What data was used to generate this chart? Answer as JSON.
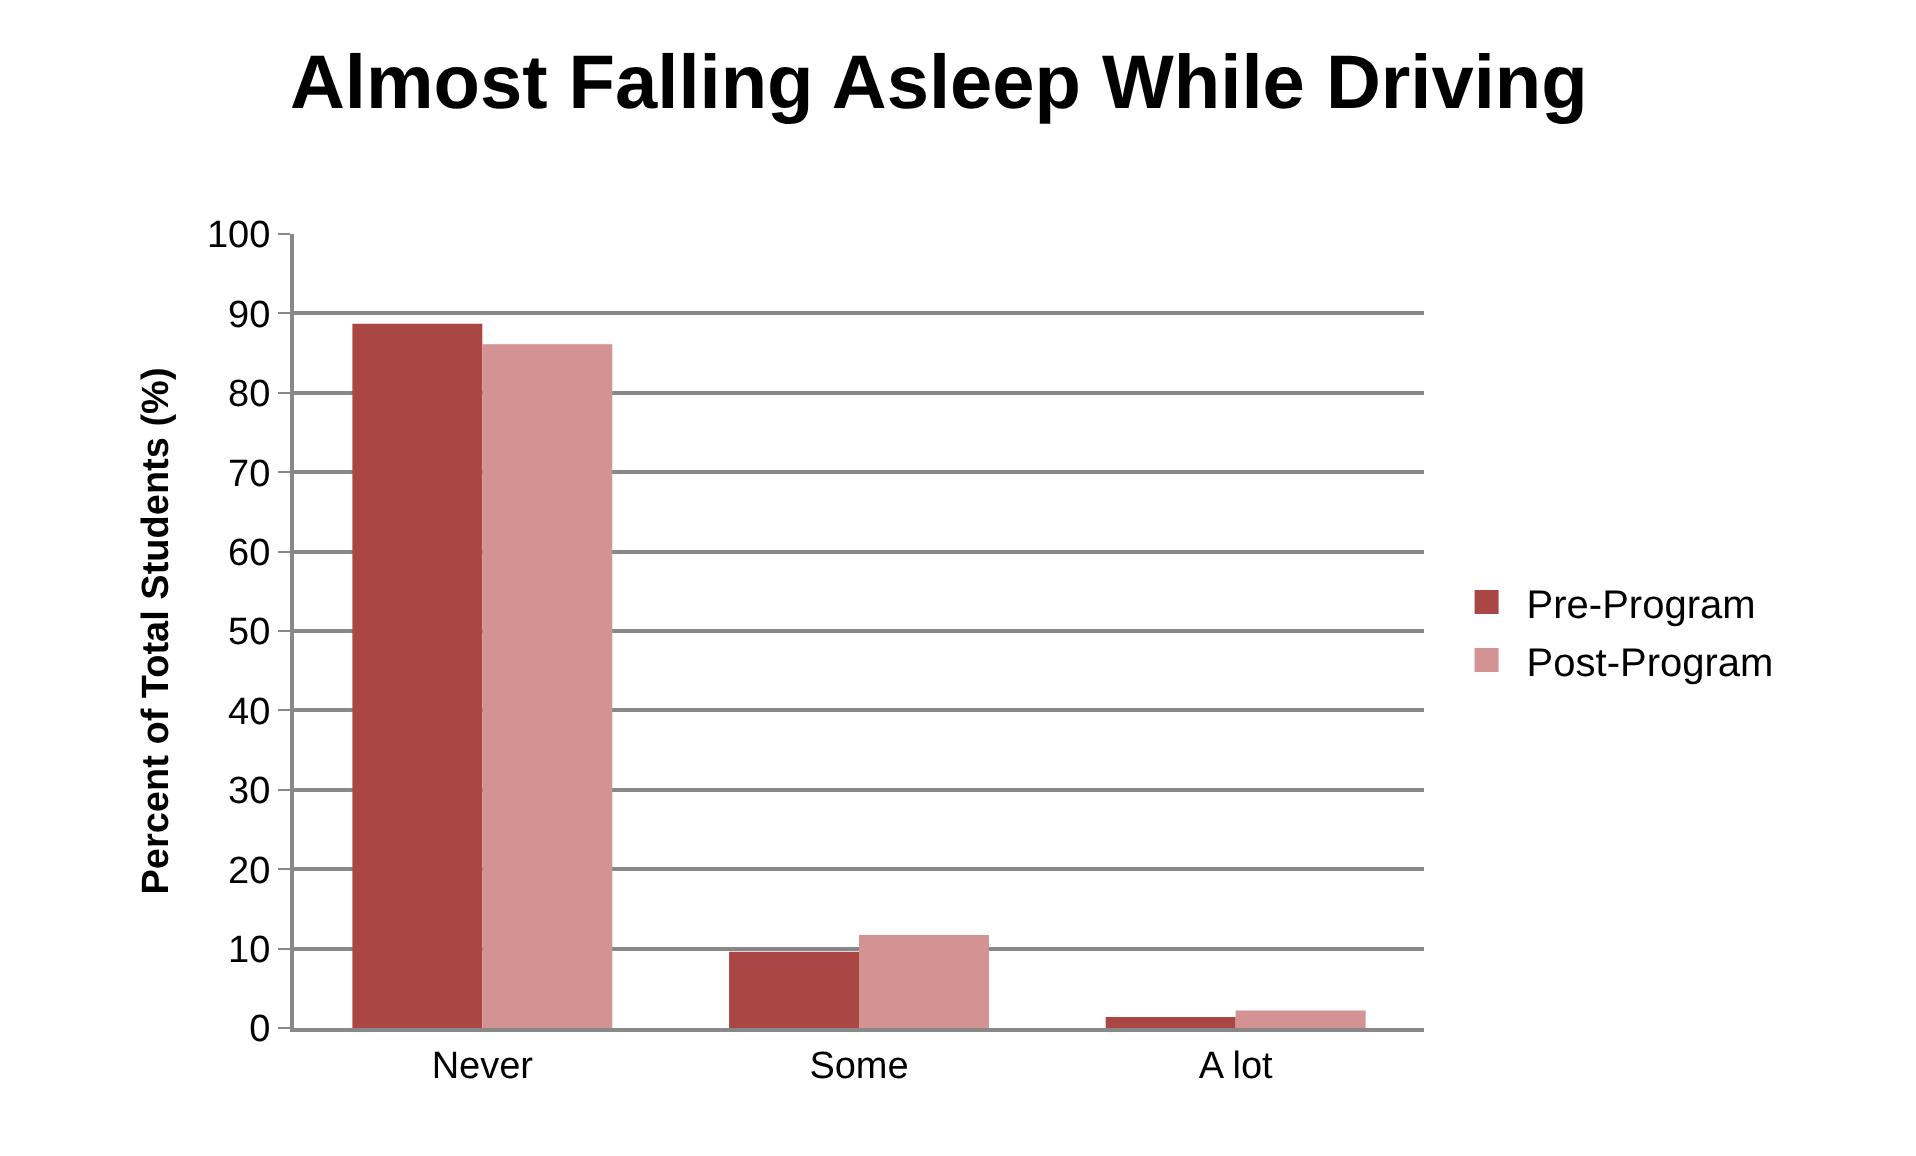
{
  "chart_data": {
    "type": "bar",
    "title": "Almost Falling Asleep While Driving",
    "ylabel": "Percent of Total Students (%)",
    "categories": [
      "Never",
      "Some",
      "A lot"
    ],
    "series": [
      {
        "name": "Pre-Program",
        "color": "#aa4744",
        "values": [
          88.7,
          9.6,
          1.4
        ]
      },
      {
        "name": "Post-Program",
        "color": "#d39392",
        "values": [
          86.1,
          11.7,
          2.2
        ]
      }
    ],
    "ylim": [
      0,
      100
    ],
    "yticks": [
      0,
      10,
      20,
      30,
      40,
      50,
      60,
      70,
      80,
      90,
      100
    ],
    "grid": "y",
    "legend": "right"
  }
}
